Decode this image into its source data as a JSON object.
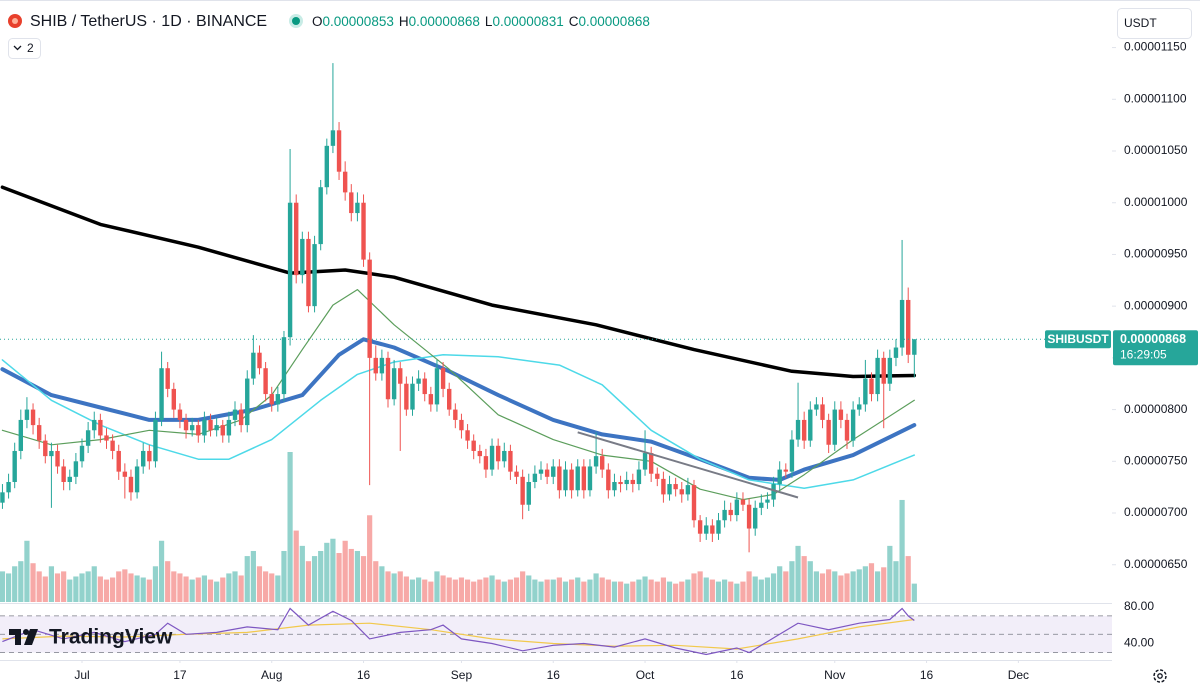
{
  "chart_data": {
    "type": "candlestick",
    "symbol": "SHIB / TetherUS · 1D · BINANCE",
    "ohlc_labels": [
      "O",
      "H",
      "L",
      "C"
    ],
    "indicator_count": "2",
    "currency": "USDT",
    "ticker": "SHIBUSDT",
    "countdown": "16:29:05",
    "watermark": "TradingView",
    "up_color": "#26a69a",
    "down_color": "#ef5350",
    "grid": false,
    "xlim": [
      -0.4,
      181.3
    ],
    "xticks": [
      {
        "value": 13,
        "label": "Jul"
      },
      {
        "value": 29,
        "label": "17"
      },
      {
        "value": 44,
        "label": "Aug"
      },
      {
        "value": 59,
        "label": "16"
      },
      {
        "value": 75,
        "label": "Sep"
      },
      {
        "value": 90,
        "label": "16"
      },
      {
        "value": 105,
        "label": "Oct"
      },
      {
        "value": 120,
        "label": "16"
      },
      {
        "value": 136,
        "label": "Nov"
      },
      {
        "value": 151,
        "label": "16"
      },
      {
        "value": 166,
        "label": "Dec"
      }
    ],
    "ylim": [
      6.13e-06,
      1.196e-05
    ],
    "yticks": [
      {
        "value": 6.5e-06,
        "label": "0.00000650"
      },
      {
        "value": 7e-06,
        "label": "0.00000700"
      },
      {
        "value": 7.5e-06,
        "label": "0.00000750"
      },
      {
        "value": 8e-06,
        "label": "0.00000800"
      },
      {
        "value": 8.5e-06,
        "label": "0.00000850"
      },
      {
        "value": 9e-06,
        "label": "0.00000900"
      },
      {
        "value": 9.5e-06,
        "label": "0.00000950"
      },
      {
        "value": 1e-05,
        "label": "0.00001000"
      },
      {
        "value": 1.05e-05,
        "label": "0.00001050"
      },
      {
        "value": 1.1e-05,
        "label": "0.00001100"
      },
      {
        "value": 1.15e-05,
        "label": "0.00001150"
      }
    ],
    "open": [
      7.1e-06,
      7.2e-06,
      7.3e-06,
      7.6e-06,
      7.9e-06,
      8e-06,
      7.85e-06,
      7.7e-06,
      7.55e-06,
      7.6e-06,
      7.45e-06,
      7.3e-06,
      7.35e-06,
      7.5e-06,
      7.65e-06,
      7.8e-06,
      7.9e-06,
      7.75e-06,
      7.7e-06,
      7.6e-06,
      7.4e-06,
      7.35e-06,
      7.2e-06,
      7.45e-06,
      7.6e-06,
      7.5e-06,
      7.9e-06,
      8.4e-06,
      8.2e-06,
      8e-06,
      7.9e-06,
      7.8e-06,
      7.85e-06,
      7.75e-06,
      7.9e-06,
      7.8e-06,
      7.85e-06,
      7.75e-06,
      7.9e-06,
      8e-06,
      7.85e-06,
      8.3e-06,
      8.55e-06,
      8.4e-06,
      8.15e-06,
      8.05e-06,
      8.15e-06,
      8.7e-06,
      1e-05,
      9.3e-06,
      9.65e-06,
      9e-06,
      9.6e-06,
      1.015e-05,
      1.055e-05,
      1.07e-05,
      1.03e-05,
      1.01e-05,
      9.9e-06,
      1e-05,
      9.45e-06,
      8.5e-06,
      8.35e-06,
      8.5e-06,
      8.1e-06,
      8.4e-06,
      8.25e-06,
      8e-06,
      8.25e-06,
      8.3e-06,
      8.15e-06,
      8.05e-06,
      8.4e-06,
      8.2e-06,
      8e-06,
      7.9e-06,
      7.8e-06,
      7.7e-06,
      7.6e-06,
      7.55e-06,
      7.42e-06,
      7.65e-06,
      7.5e-06,
      7.6e-06,
      7.4e-06,
      7.35e-06,
      7.08e-06,
      7.3e-06,
      7.38e-06,
      7.42e-06,
      7.35e-06,
      7.45e-06,
      7.22e-06,
      7.42e-06,
      7.22e-06,
      7.45e-06,
      7.22e-06,
      7.45e-06,
      7.55e-06,
      7.42e-06,
      7.22e-06,
      7.3e-06,
      7.28e-06,
      7.32e-06,
      7.28e-06,
      7.42e-06,
      7.58e-06,
      7.38e-06,
      7.33e-06,
      7.18e-06,
      7.28e-06,
      7.23e-06,
      7.18e-06,
      7.27e-06,
      6.93e-06,
      6.8e-06,
      6.88e-06,
      6.8e-06,
      6.93e-06,
      7.03e-06,
      6.98e-06,
      7.13e-06,
      7.08e-06,
      6.85e-06,
      7.05e-06,
      7.1e-06,
      7.13e-06,
      7.28e-06,
      7.42e-06,
      7.4e-06,
      7.71e-06,
      7.9e-06,
      7.7e-06,
      8e-06,
      8.05e-06,
      7.9e-06,
      7.66e-06,
      8e-06,
      7.9e-06,
      7.7e-06,
      8e-06,
      8.05e-06,
      8.3e-06,
      8.15e-06,
      8.5e-06,
      8.25e-06,
      8.5e-06,
      8.6e-06,
      9.06e-06,
      8.53e-06
    ],
    "high": [
      7.28e-06,
      7.38e-06,
      7.68e-06,
      8e-06,
      8.12e-06,
      8.06e-06,
      7.92e-06,
      7.76e-06,
      7.68e-06,
      7.66e-06,
      7.52e-06,
      7.42e-06,
      7.58e-06,
      7.72e-06,
      7.88e-06,
      7.98e-06,
      7.96e-06,
      7.82e-06,
      7.76e-06,
      7.66e-06,
      7.48e-06,
      7.42e-06,
      7.52e-06,
      7.68e-06,
      7.66e-06,
      7.98e-06,
      8.56e-06,
      8.46e-06,
      8.26e-06,
      8.06e-06,
      7.96e-06,
      7.92e-06,
      7.9e-06,
      7.98e-06,
      7.96e-06,
      7.92e-06,
      7.9e-06,
      7.98e-06,
      8.08e-06,
      8.06e-06,
      8.38e-06,
      8.72e-06,
      8.62e-06,
      8.46e-06,
      8.22e-06,
      8.22e-06,
      8.76e-06,
      1.052e-05,
      1.008e-05,
      9.72e-06,
      9.72e-06,
      9.68e-06,
      1.022e-05,
      1.062e-05,
      1.135e-05,
      1.078e-05,
      1.04e-05,
      1.018e-05,
      1.01e-05,
      1.008e-05,
      9.52e-06,
      8.62e-06,
      8.58e-06,
      8.56e-06,
      8.48e-06,
      8.46e-06,
      8.32e-06,
      8.32e-06,
      8.38e-06,
      8.36e-06,
      8.22e-06,
      8.48e-06,
      8.46e-06,
      8.26e-06,
      8.06e-06,
      7.96e-06,
      7.86e-06,
      7.76e-06,
      7.66e-06,
      7.62e-06,
      7.72e-06,
      7.72e-06,
      7.68e-06,
      7.66e-06,
      7.46e-06,
      7.42e-06,
      7.38e-06,
      7.46e-06,
      7.5e-06,
      7.48e-06,
      7.52e-06,
      7.52e-06,
      7.5e-06,
      7.48e-06,
      7.52e-06,
      7.52e-06,
      7.52e-06,
      7.78e-06,
      7.62e-06,
      7.48e-06,
      7.38e-06,
      7.36e-06,
      7.4e-06,
      7.38e-06,
      7.5e-06,
      7.8e-06,
      7.64e-06,
      7.44e-06,
      7.4e-06,
      7.36e-06,
      7.34e-06,
      7.3e-06,
      7.34e-06,
      7.32e-06,
      6.98e-06,
      6.96e-06,
      6.94e-06,
      7e-06,
      7.12e-06,
      7.1e-06,
      7.2e-06,
      7.2e-06,
      7.14e-06,
      7.12e-06,
      7.18e-06,
      7.2e-06,
      7.35e-06,
      7.5e-06,
      7.48e-06,
      7.8e-06,
      8.26e-06,
      7.98e-06,
      8.08e-06,
      8.12e-06,
      8.12e-06,
      7.96e-06,
      8.08e-06,
      8.08e-06,
      7.96e-06,
      8.08e-06,
      8.12e-06,
      8.48e-06,
      8.36e-06,
      8.58e-06,
      8.56e-06,
      8.58e-06,
      8.68e-06,
      9.64e-06,
      9.18e-06,
      8.68e-06
    ],
    "low": [
      7.04e-06,
      7.14e-06,
      7.24e-06,
      7.52e-06,
      7.82e-06,
      7.76e-06,
      7.62e-06,
      7.48e-06,
      7.05e-06,
      7.38e-06,
      7.22e-06,
      7.22e-06,
      7.28e-06,
      7.44e-06,
      7.58e-06,
      7.72e-06,
      7.68e-06,
      7.62e-06,
      7.52e-06,
      7.32e-06,
      7.14e-06,
      7.12e-06,
      7.14e-06,
      7.38e-06,
      7.42e-06,
      7.44e-06,
      7.84e-06,
      8.12e-06,
      7.92e-06,
      7.82e-06,
      7.72e-06,
      7.74e-06,
      7.68e-06,
      7.68e-06,
      7.74e-06,
      7.74e-06,
      7.68e-06,
      7.68e-06,
      7.84e-06,
      7.78e-06,
      7.78e-06,
      8.24e-06,
      8.34e-06,
      8.08e-06,
      7.98e-06,
      7.98e-06,
      8.08e-06,
      8.62e-06,
      9.22e-06,
      9.22e-06,
      8.94e-06,
      8.94e-06,
      9.54e-06,
      1.008e-05,
      1.048e-05,
      1.022e-05,
      1.002e-05,
      9.82e-06,
      9.82e-06,
      9.38e-06,
      7.27e-06,
      8.28e-06,
      8.28e-06,
      8.02e-06,
      8.04e-06,
      7.6e-06,
      7.94e-06,
      7.94e-06,
      8.18e-06,
      8.08e-06,
      7.98e-06,
      7.98e-06,
      8.12e-06,
      7.94e-06,
      7.82e-06,
      7.72e-06,
      7.62e-06,
      7.52e-06,
      7.48e-06,
      7.34e-06,
      7.36e-06,
      7.42e-06,
      7.44e-06,
      7.32e-06,
      7.28e-06,
      6.94e-06,
      7.02e-06,
      7.24e-06,
      7.32e-06,
      7.28e-06,
      7.28e-06,
      7.14e-06,
      7.16e-06,
      7.14e-06,
      7.16e-06,
      7.14e-06,
      7.16e-06,
      7.38e-06,
      7.34e-06,
      7.14e-06,
      7.16e-06,
      7.2e-06,
      7.22e-06,
      7.2e-06,
      7.22e-06,
      7.36e-06,
      7.3e-06,
      7.26e-06,
      7.1e-06,
      7.12e-06,
      7.16e-06,
      7.1e-06,
      7.12e-06,
      6.86e-06,
      6.72e-06,
      6.74e-06,
      6.72e-06,
      6.74e-06,
      6.86e-06,
      6.92e-06,
      6.92e-06,
      7.02e-06,
      6.62e-06,
      6.78e-06,
      6.98e-06,
      7.04e-06,
      7.06e-06,
      7.22e-06,
      7.34e-06,
      7.34e-06,
      7.64e-06,
      7.62e-06,
      7.64e-06,
      7.94e-06,
      7.82e-06,
      7.58e-06,
      7.6e-06,
      7.82e-06,
      7.62e-06,
      7.64e-06,
      7.94e-06,
      7.98e-06,
      8.08e-06,
      8.08e-06,
      7.82e-06,
      8.18e-06,
      8.42e-06,
      8.52e-06,
      8.45e-06,
      8.31e-06
    ],
    "close": [
      7.2e-06,
      7.3e-06,
      7.6e-06,
      7.9e-06,
      8e-06,
      7.85e-06,
      7.7e-06,
      7.55e-06,
      7.6e-06,
      7.45e-06,
      7.3e-06,
      7.35e-06,
      7.5e-06,
      7.65e-06,
      7.8e-06,
      7.9e-06,
      7.75e-06,
      7.7e-06,
      7.6e-06,
      7.4e-06,
      7.35e-06,
      7.2e-06,
      7.45e-06,
      7.6e-06,
      7.5e-06,
      7.9e-06,
      8.4e-06,
      8.2e-06,
      8e-06,
      7.9e-06,
      7.8e-06,
      7.85e-06,
      7.75e-06,
      7.9e-06,
      7.8e-06,
      7.85e-06,
      7.75e-06,
      7.9e-06,
      8e-06,
      7.85e-06,
      8.3e-06,
      8.55e-06,
      8.4e-06,
      8.15e-06,
      8.05e-06,
      8.15e-06,
      8.7e-06,
      1e-05,
      9.3e-06,
      9.65e-06,
      9e-06,
      9.6e-06,
      1.015e-05,
      1.055e-05,
      1.07e-05,
      1.03e-05,
      1.01e-05,
      9.9e-06,
      1e-05,
      9.45e-06,
      8.5e-06,
      8.35e-06,
      8.5e-06,
      8.1e-06,
      8.4e-06,
      8.25e-06,
      8e-06,
      8.25e-06,
      8.3e-06,
      8.15e-06,
      8.05e-06,
      8.4e-06,
      8.2e-06,
      8e-06,
      7.9e-06,
      7.8e-06,
      7.7e-06,
      7.6e-06,
      7.55e-06,
      7.42e-06,
      7.65e-06,
      7.5e-06,
      7.6e-06,
      7.4e-06,
      7.35e-06,
      7.08e-06,
      7.3e-06,
      7.38e-06,
      7.42e-06,
      7.35e-06,
      7.45e-06,
      7.22e-06,
      7.42e-06,
      7.22e-06,
      7.45e-06,
      7.22e-06,
      7.45e-06,
      7.55e-06,
      7.42e-06,
      7.22e-06,
      7.3e-06,
      7.28e-06,
      7.32e-06,
      7.28e-06,
      7.42e-06,
      7.58e-06,
      7.38e-06,
      7.33e-06,
      7.18e-06,
      7.28e-06,
      7.23e-06,
      7.18e-06,
      7.27e-06,
      6.93e-06,
      6.8e-06,
      6.88e-06,
      6.8e-06,
      6.93e-06,
      7.03e-06,
      6.98e-06,
      7.13e-06,
      7.08e-06,
      6.85e-06,
      7.05e-06,
      7.1e-06,
      7.13e-06,
      7.28e-06,
      7.42e-06,
      7.4e-06,
      7.71e-06,
      7.9e-06,
      7.7e-06,
      8e-06,
      8.05e-06,
      7.9e-06,
      7.66e-06,
      8e-06,
      7.9e-06,
      7.7e-06,
      8e-06,
      8.05e-06,
      8.3e-06,
      8.15e-06,
      8.5e-06,
      8.25e-06,
      8.5e-06,
      8.6e-06,
      9.06e-06,
      8.53e-06,
      8.68e-06
    ],
    "volume": [
      30,
      28,
      35,
      40,
      60,
      38,
      30,
      25,
      35,
      28,
      30,
      22,
      25,
      28,
      30,
      35,
      25,
      22,
      24,
      30,
      32,
      28,
      26,
      24,
      22,
      35,
      60,
      40,
      30,
      28,
      25,
      22,
      24,
      26,
      22,
      20,
      24,
      28,
      30,
      26,
      45,
      50,
      35,
      30,
      28,
      26,
      50,
      147,
      70,
      55,
      40,
      45,
      50,
      58,
      62,
      48,
      60,
      52,
      50,
      45,
      85,
      40,
      35,
      30,
      28,
      30,
      25,
      22,
      24,
      22,
      20,
      30,
      26,
      24,
      22,
      24,
      22,
      20,
      22,
      24,
      26,
      22,
      20,
      22,
      24,
      30,
      26,
      22,
      20,
      22,
      22,
      24,
      20,
      22,
      24,
      20,
      22,
      28,
      24,
      22,
      20,
      20,
      18,
      20,
      22,
      25,
      22,
      20,
      24,
      20,
      18,
      20,
      22,
      28,
      30,
      24,
      22,
      20,
      22,
      20,
      18,
      20,
      30,
      25,
      22,
      24,
      28,
      35,
      30,
      40,
      55,
      45,
      40,
      30,
      28,
      32,
      30,
      26,
      28,
      30,
      32,
      35,
      38,
      30,
      34,
      55,
      40,
      100,
      45,
      18
    ],
    "moving_averages": [
      {
        "color": "#3d74c2",
        "width": 4,
        "x": [
          0,
          8,
          16,
          24,
          32,
          41,
          49,
          55,
          59,
          64,
          73,
          81,
          90,
          98,
          106,
          114,
          122,
          127,
          131,
          139,
          149
        ],
        "values": [
          8.39e-06,
          8.14e-06,
          8.02e-06,
          7.9e-06,
          7.9e-06,
          8e-06,
          8.14e-06,
          8.53e-06,
          8.68e-06,
          8.6e-06,
          8.37e-06,
          8.14e-06,
          7.9e-06,
          7.76e-06,
          7.69e-06,
          7.52e-06,
          7.34e-06,
          7.32e-06,
          7.42e-06,
          7.56e-06,
          7.85e-06
        ]
      },
      {
        "color": "#4dd9e8",
        "width": 1.5,
        "x": [
          0,
          8,
          16,
          24,
          32,
          37,
          44,
          52,
          58,
          64,
          72,
          81,
          91,
          98,
          106,
          114,
          122,
          131,
          139,
          149
        ],
        "values": [
          8.48e-06,
          8.09e-06,
          7.85e-06,
          7.66e-06,
          7.52e-06,
          7.52e-06,
          7.71e-06,
          8.09e-06,
          8.34e-06,
          8.46e-06,
          8.53e-06,
          8.51e-06,
          8.43e-06,
          8.24e-06,
          7.8e-06,
          7.52e-06,
          7.32e-06,
          7.24e-06,
          7.32e-06,
          7.56e-06
        ]
      },
      {
        "color": "#5c9e5c",
        "width": 1.2,
        "x": [
          0,
          8,
          16,
          24,
          32,
          39,
          44,
          49,
          54,
          58,
          64,
          73,
          81,
          90,
          98,
          106,
          114,
          121,
          126,
          131,
          139,
          149
        ],
        "values": [
          7.8e-06,
          7.66e-06,
          7.71e-06,
          7.8e-06,
          7.76e-06,
          7.9e-06,
          8.14e-06,
          8.58e-06,
          9.01e-06,
          9.16e-06,
          8.82e-06,
          8.39e-06,
          7.95e-06,
          7.71e-06,
          7.56e-06,
          7.5e-06,
          7.23e-06,
          7.13e-06,
          7.18e-06,
          7.37e-06,
          7.71e-06,
          8.09e-06
        ]
      },
      {
        "color": "#000000",
        "width": 3.5,
        "x": [
          0,
          16,
          32,
          47,
          56,
          64,
          80,
          97,
          113,
          129,
          139,
          149
        ],
        "values": [
          1.015e-05,
          9.79e-06,
          9.57e-06,
          9.32e-06,
          9.35e-06,
          9.28e-06,
          9.01e-06,
          8.82e-06,
          8.58e-06,
          8.37e-06,
          8.32e-06,
          8.33e-06
        ]
      }
    ],
    "trendline": {
      "color": "#787b86",
      "x": [
        94,
        130
      ],
      "values": [
        7.78e-06,
        7.15e-06
      ]
    },
    "rsi": {
      "color": "#7e57c2",
      "ylim": [
        22,
        84
      ],
      "yticks": [
        {
          "value": 80,
          "label": "80.00"
        },
        {
          "value": 40,
          "label": "40.00"
        }
      ],
      "bands": [
        30,
        50,
        70
      ],
      "x": [
        0,
        5,
        10,
        15,
        20,
        25,
        27,
        30,
        35,
        40,
        45,
        47,
        50,
        54,
        57,
        60,
        65,
        70,
        72,
        75,
        80,
        85,
        90,
        95,
        100,
        105,
        110,
        115,
        120,
        122,
        125,
        130,
        135,
        140,
        145,
        147,
        148,
        149
      ],
      "values": [
        42,
        55,
        45,
        52,
        42,
        50,
        62,
        50,
        52,
        58,
        55,
        78,
        60,
        75,
        65,
        45,
        52,
        55,
        60,
        45,
        40,
        32,
        38,
        40,
        36,
        45,
        35,
        28,
        35,
        30,
        42,
        62,
        55,
        62,
        66,
        78,
        70,
        65
      ],
      "ma": {
        "color": "#f2c94c",
        "x": [
          0,
          10,
          20,
          30,
          40,
          50,
          60,
          70,
          80,
          90,
          100,
          110,
          120,
          130,
          140,
          149
        ],
        "values": [
          45,
          48,
          47,
          50,
          52,
          60,
          62,
          55,
          45,
          40,
          37,
          38,
          34,
          45,
          58,
          66
        ]
      }
    }
  }
}
